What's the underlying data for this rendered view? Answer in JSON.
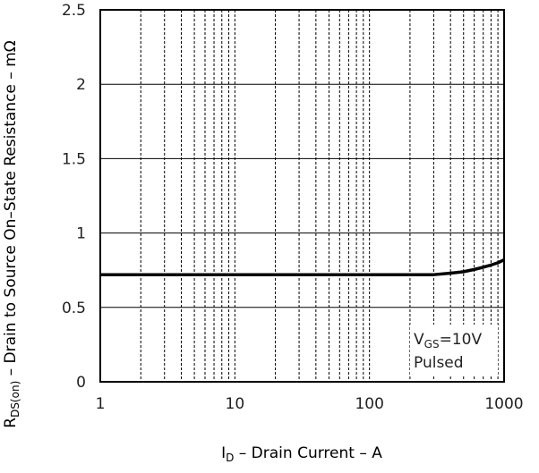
{
  "chart_data": {
    "type": "line",
    "xscale": "log",
    "xlim": [
      1,
      1000
    ],
    "ylim": [
      0,
      2.5
    ],
    "x_ticks": [
      {
        "value": 1,
        "label": "1"
      },
      {
        "value": 10,
        "label": "10"
      },
      {
        "value": 100,
        "label": "100"
      },
      {
        "value": 1000,
        "label": "1000"
      }
    ],
    "y_ticks": [
      {
        "value": 0,
        "label": "0"
      },
      {
        "value": 0.5,
        "label": "0.5"
      },
      {
        "value": 1,
        "label": "1"
      },
      {
        "value": 1.5,
        "label": "1.5"
      },
      {
        "value": 2,
        "label": "2"
      },
      {
        "value": 2.5,
        "label": "2.5"
      }
    ],
    "xlabel": {
      "main": "I",
      "sub": "D",
      "rest": " – Drain Current – A"
    },
    "ylabel": {
      "main": "R",
      "sub": "DS(on)",
      "rest": " – Drain to Source On–State Resistance – mΩ"
    },
    "grid": {
      "x": "dashed-minor",
      "y": "solid-major"
    },
    "annotation": {
      "line1": {
        "main": "V",
        "sub": "GS",
        "rest": "=10V"
      },
      "line2": "Pulsed",
      "placement": "bottom-right"
    },
    "series": [
      {
        "x": [
          1,
          10,
          100,
          300,
          400,
          500,
          600,
          700,
          800,
          900,
          1000
        ],
        "y": [
          0.72,
          0.72,
          0.72,
          0.72,
          0.73,
          0.74,
          0.755,
          0.77,
          0.785,
          0.8,
          0.82
        ]
      }
    ]
  }
}
